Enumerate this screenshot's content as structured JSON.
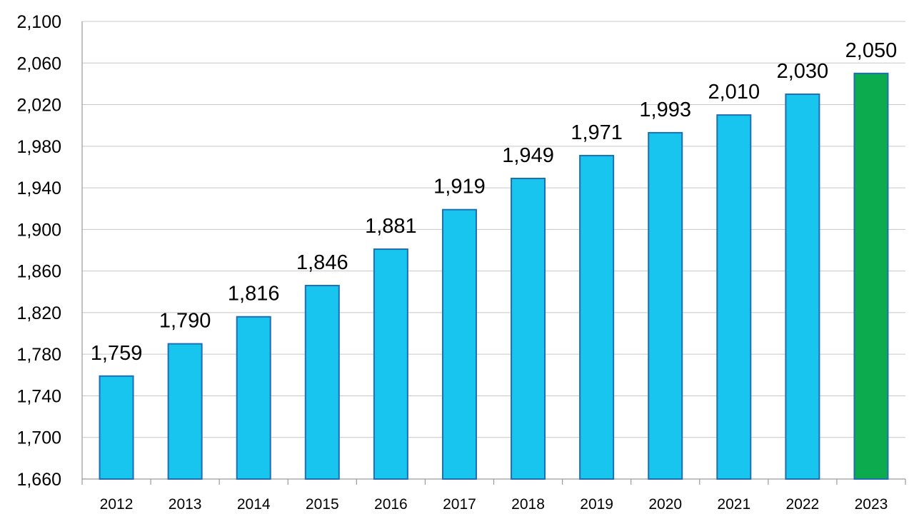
{
  "chart_data": {
    "type": "bar",
    "title": "",
    "xlabel": "",
    "ylabel": "",
    "categories": [
      "2012",
      "2013",
      "2014",
      "2015",
      "2016",
      "2017",
      "2018",
      "2019",
      "2020",
      "2021",
      "2022",
      "2023"
    ],
    "values": [
      1759,
      1790,
      1816,
      1846,
      1881,
      1919,
      1949,
      1971,
      1993,
      2010,
      2030,
      2050
    ],
    "data_labels": [
      "1,759",
      "1,790",
      "1,816",
      "1,846",
      "1,881",
      "1,919",
      "1,949",
      "1,971",
      "1,993",
      "2,010",
      "2,030",
      "2,050"
    ],
    "ylim": [
      1660,
      2100
    ],
    "y_ticks": [
      1660,
      1700,
      1740,
      1780,
      1820,
      1860,
      1900,
      1940,
      1980,
      2020,
      2060,
      2100
    ],
    "y_tick_labels": [
      "1,660",
      "1,700",
      "1,740",
      "1,780",
      "1,820",
      "1,860",
      "1,900",
      "1,940",
      "1,980",
      "2,020",
      "2,060",
      "2,100"
    ],
    "grid": true,
    "legend": "none",
    "colors": {
      "bar_fill": "#17c5ef",
      "bar_stroke": "#1f6fb0",
      "highlight_fill": "#0bab4e",
      "highlight_stroke": "#1f6fb0",
      "highlight_category": "2023"
    }
  }
}
